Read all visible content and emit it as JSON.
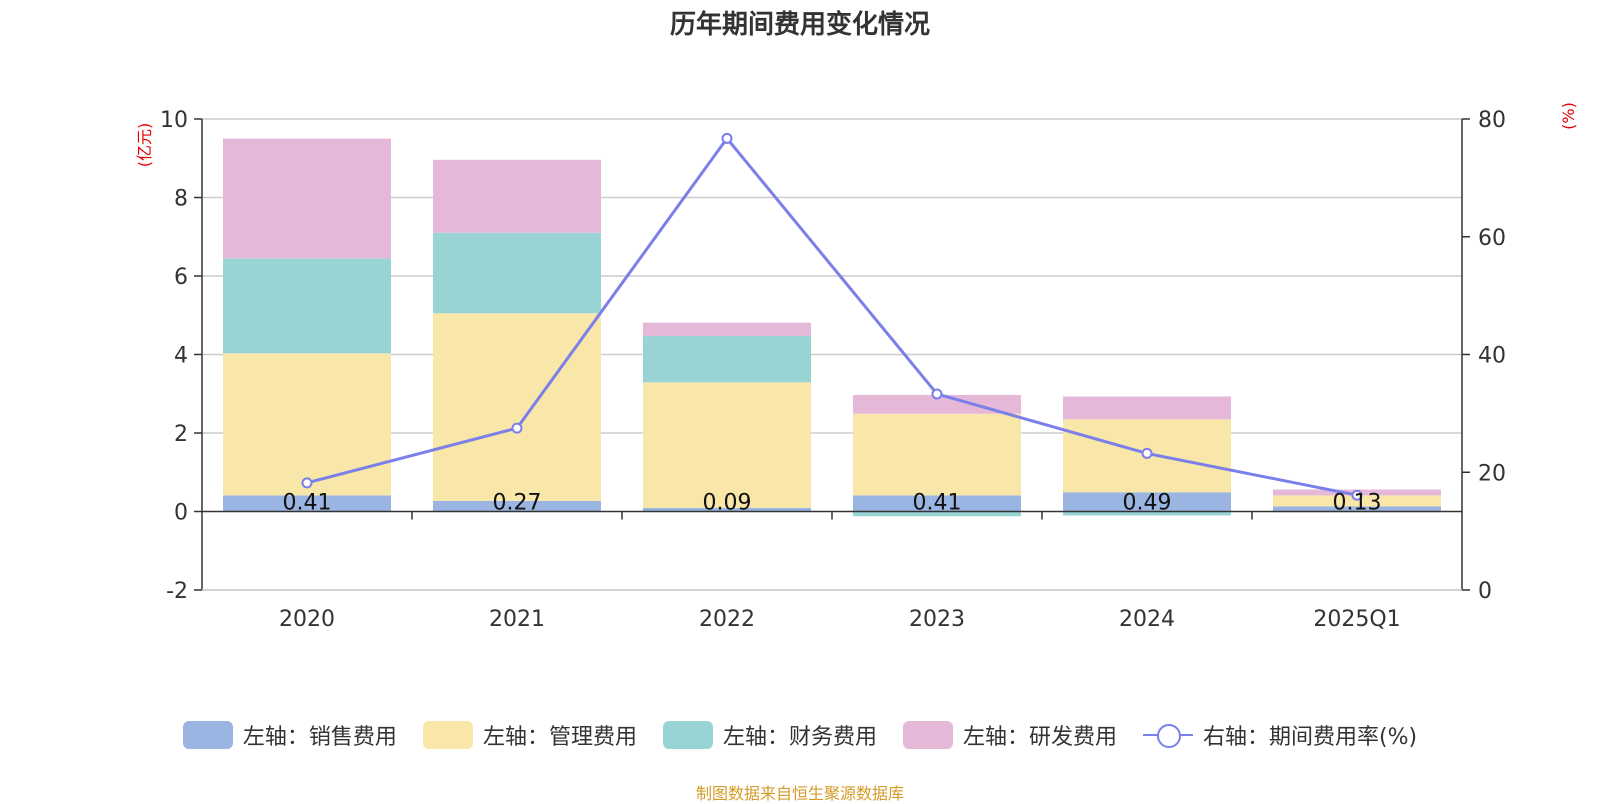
{
  "chart_data": {
    "type": "bar",
    "title": "历年期间费用变化情况",
    "categories": [
      "2020",
      "2021",
      "2022",
      "2023",
      "2024",
      "2025Q1"
    ],
    "y_left": {
      "unit": "(亿元)",
      "ylim": [
        -2,
        10
      ],
      "ticks": [
        -2,
        0,
        2,
        4,
        6,
        8,
        10
      ]
    },
    "y_right": {
      "unit": "(%)",
      "ylim": [
        0,
        80
      ],
      "ticks": [
        0,
        20,
        40,
        60,
        80
      ]
    },
    "series": [
      {
        "name": "左轴：销售费用",
        "axis": "left",
        "color": "#9bb5e2",
        "values": [
          0.41,
          0.27,
          0.09,
          0.41,
          0.49,
          0.13
        ],
        "labels": [
          "0.41",
          "0.27",
          "0.09",
          "0.41",
          "0.49",
          "0.13"
        ]
      },
      {
        "name": "左轴：管理费用",
        "axis": "left",
        "color": "#f8e7a9",
        "values": [
          3.62,
          4.78,
          3.2,
          2.08,
          1.86,
          0.28
        ]
      },
      {
        "name": "左轴：财务费用",
        "axis": "left",
        "color": "#98d4d4",
        "values": [
          2.42,
          2.05,
          1.18,
          -0.12,
          -0.1,
          -0.02
        ]
      },
      {
        "name": "左轴：研发费用",
        "axis": "left",
        "color": "#e6b8d8",
        "values": [
          3.05,
          1.86,
          0.34,
          0.48,
          0.58,
          0.15
        ]
      },
      {
        "name": "右轴：期间费用率(%)",
        "axis": "right",
        "type": "line",
        "color": "#7b7fe9",
        "values": [
          18.2,
          27.5,
          76.7,
          33.3,
          23.2,
          16.1
        ]
      }
    ],
    "grid": true,
    "legend_position": "bottom"
  },
  "footer": {
    "source": "制图数据来自恒生聚源数据库"
  }
}
